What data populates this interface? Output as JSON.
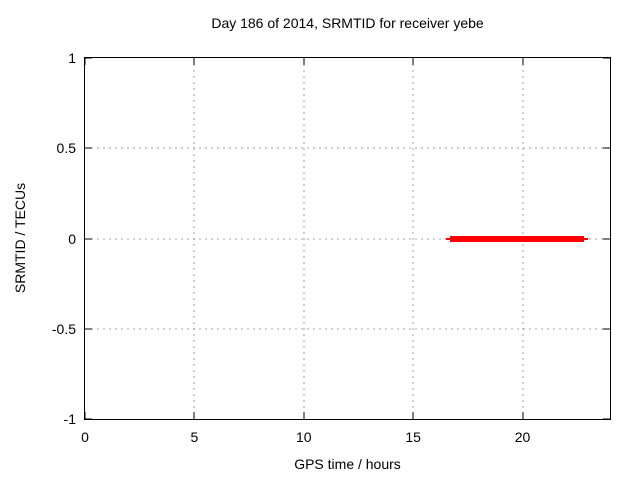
{
  "chart_data": {
    "type": "line",
    "title": "Day 186 of 2014, SRMTID for receiver yebe",
    "xlabel": "GPS time / hours",
    "ylabel": "SRMTID / TECUs",
    "xlim": [
      0,
      24
    ],
    "ylim": [
      -1,
      1
    ],
    "xticks": [
      0,
      5,
      10,
      15,
      20
    ],
    "xtick_labels": [
      "0",
      "5",
      "10",
      "15",
      "20"
    ],
    "yticks": [
      -1,
      -0.5,
      0,
      0.5,
      1
    ],
    "ytick_labels": [
      "-1",
      "-0.5",
      "0",
      "0.5",
      "1"
    ],
    "grid": true,
    "grid_style": "dashed",
    "legend_position": "none",
    "colors": {
      "series": "#ff0000",
      "grid": "#a0a0a0",
      "border": "#000000",
      "background": "#ffffff"
    },
    "series": [
      {
        "name": "SRMTID",
        "color": "#ff0000",
        "style": "thick-horizontal-segment",
        "points": [
          {
            "x": 16.7,
            "y": 0
          },
          {
            "x": 22.8,
            "y": 0
          }
        ]
      }
    ]
  }
}
